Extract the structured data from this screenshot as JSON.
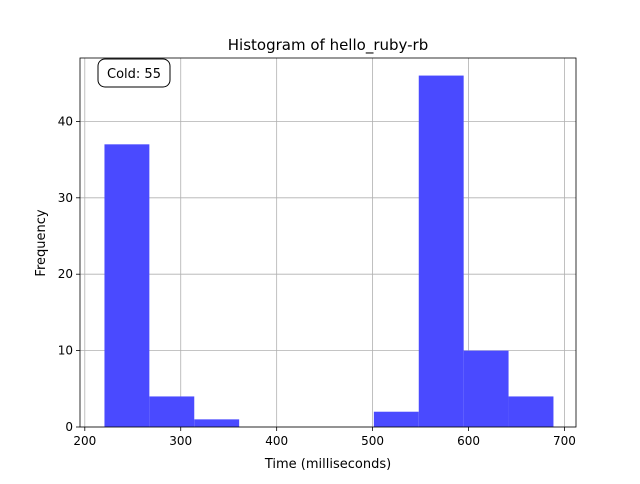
{
  "chart_data": {
    "type": "histogram",
    "title": "Histogram of hello_ruby-rb",
    "xlabel": "Time (milliseconds)",
    "ylabel": "Frequency",
    "xlim": [
      195,
      712
    ],
    "ylim": [
      0,
      48.3
    ],
    "grid": true,
    "bar_color": "#4a4aff",
    "bins": [
      {
        "start": 220.5,
        "end": 267.3,
        "count": 37
      },
      {
        "start": 267.3,
        "end": 314.1,
        "count": 4
      },
      {
        "start": 314.1,
        "end": 360.9,
        "count": 1
      },
      {
        "start": 360.9,
        "end": 407.7,
        "count": 0
      },
      {
        "start": 407.7,
        "end": 454.5,
        "count": 0
      },
      {
        "start": 454.5,
        "end": 501.3,
        "count": 0
      },
      {
        "start": 501.3,
        "end": 548.1,
        "count": 2
      },
      {
        "start": 548.1,
        "end": 594.9,
        "count": 46
      },
      {
        "start": 594.9,
        "end": 641.7,
        "count": 10
      },
      {
        "start": 641.7,
        "end": 688.5,
        "count": 4
      }
    ],
    "x_ticks": [
      200,
      300,
      400,
      500,
      600,
      700
    ],
    "y_ticks": [
      0,
      10,
      20,
      30,
      40
    ],
    "annotation": {
      "text": "Cold: 55",
      "position": "top-left"
    }
  }
}
